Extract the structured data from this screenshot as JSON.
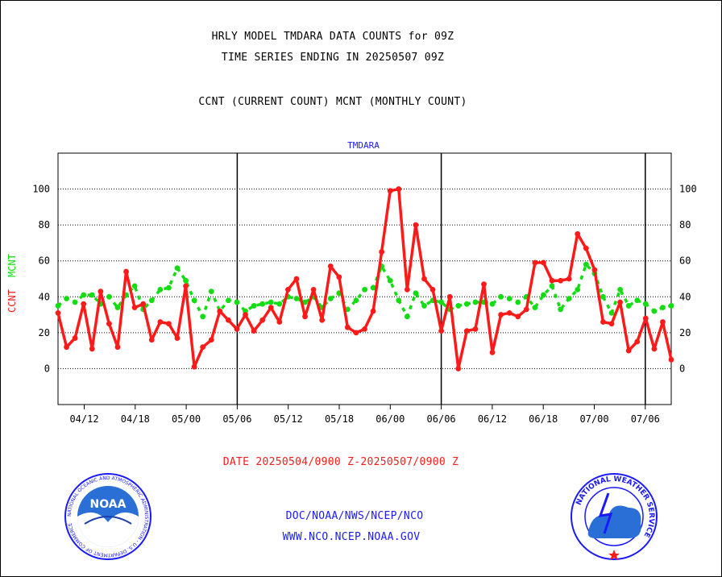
{
  "header": {
    "line1": "HRLY MODEL TMDARA DATA COUNTS for 09Z",
    "line2": "TIME SERIES ENDING IN 20250507 09Z",
    "line3": "CCNT (CURRENT COUNT) MCNT (MONTHLY COUNT)"
  },
  "chart_data": {
    "type": "line",
    "title": "TMDARA",
    "ylabel_left": "CCNT",
    "ylabel_right": "MCNT",
    "ylim": [
      -20,
      120
    ],
    "y_ticks": [
      0,
      20,
      40,
      60,
      80,
      100
    ],
    "x_tick_labels": [
      "04/12",
      "04/18",
      "05/00",
      "05/06",
      "05/12",
      "05/18",
      "06/00",
      "06/06",
      "06/12",
      "06/18",
      "07/00",
      "07/06"
    ],
    "day_separators": [
      "05/06",
      "06/06",
      "07/06"
    ],
    "grid": true,
    "colors": {
      "ccnt": "#ff1a1a",
      "mcnt": "#11dd11",
      "title": "#1a1aff",
      "axis": "#000000"
    },
    "series": [
      {
        "name": "CCNT",
        "values": [
          31,
          12,
          17,
          36,
          11,
          43,
          25,
          12,
          54,
          34,
          36,
          16,
          26,
          25,
          17,
          46,
          1,
          12,
          16,
          32,
          27,
          22,
          30,
          21,
          27,
          34,
          26,
          44,
          50,
          29,
          44,
          27,
          57,
          51,
          23,
          20,
          22,
          32,
          65,
          99,
          100,
          44,
          80,
          50,
          44,
          21,
          40,
          0,
          21,
          22,
          47,
          9,
          30,
          31,
          29,
          33,
          59,
          59,
          49,
          49,
          50,
          75,
          67,
          55,
          26,
          25,
          37,
          10,
          15,
          28,
          11,
          26,
          5
        ]
      },
      {
        "name": "MCNT",
        "values": [
          35,
          39,
          37,
          41,
          41,
          36,
          40,
          34,
          41,
          46,
          33,
          38,
          44,
          45,
          56,
          49,
          38,
          29,
          43,
          32,
          38,
          37,
          32,
          35,
          36,
          37,
          36,
          40,
          39,
          37,
          40,
          34,
          39,
          42,
          33,
          38,
          44,
          45,
          57,
          49,
          38,
          29,
          42,
          35,
          38,
          37,
          33,
          35,
          36,
          37,
          37,
          36,
          40,
          39,
          37,
          40,
          34,
          41,
          46,
          33,
          39,
          44,
          58,
          53,
          40,
          31,
          44,
          35,
          38,
          36,
          32,
          34,
          35
        ]
      }
    ]
  },
  "footer": {
    "date_range": "DATE 20250504/0900 Z-20250507/0900 Z",
    "link1": "DOC/NOAA/NWS/NCEP/NCO",
    "link2": "WWW.NCO.NCEP.NOAA.GOV"
  },
  "logos": {
    "noaa": {
      "icon": "noaa-logo",
      "text": "NOAA",
      "ring_text": "NATIONAL OCEANIC AND ATMOSPHERIC ADMINISTRATION - U.S. DEPARTMENT OF COMMERCE"
    },
    "nws": {
      "icon": "nws-logo",
      "ring_text": "NATIONAL WEATHER SERVICE"
    }
  }
}
